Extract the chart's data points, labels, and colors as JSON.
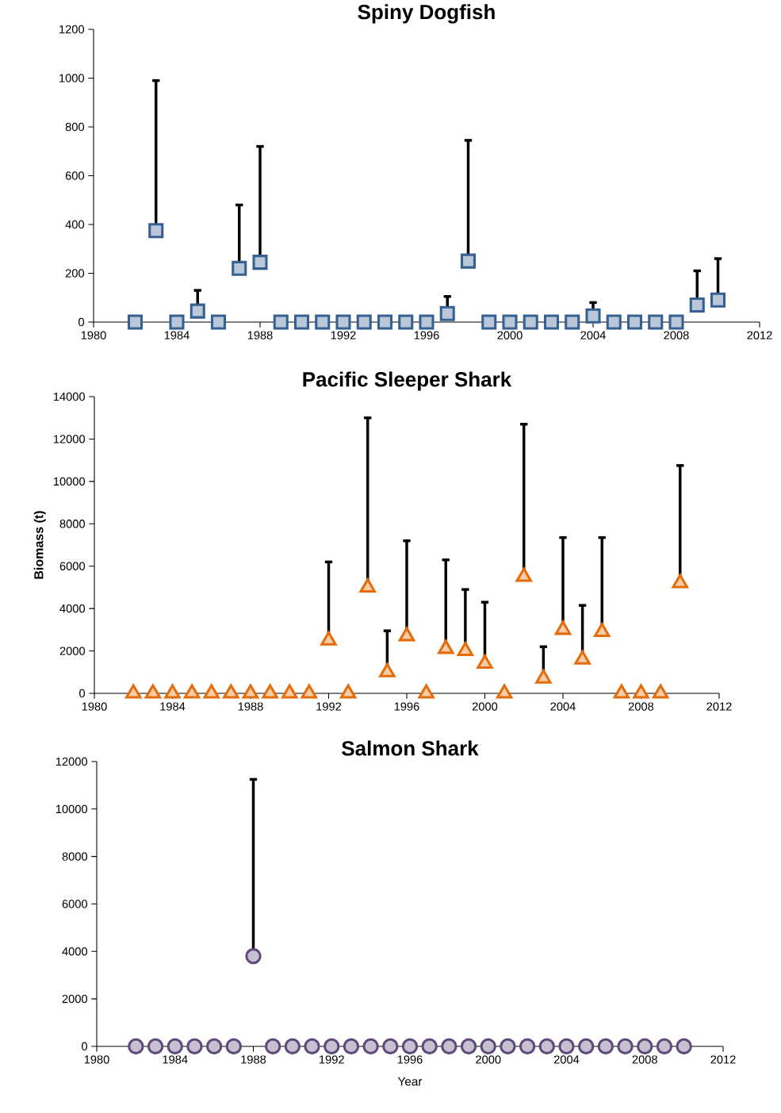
{
  "chart_data": [
    {
      "type": "scatter",
      "title": "Spiny Dogfish",
      "color": "#376092",
      "marker": "square",
      "x": [
        1982,
        1983,
        1984,
        1985,
        1986,
        1987,
        1988,
        1989,
        1990,
        1991,
        1992,
        1993,
        1994,
        1995,
        1996,
        1997,
        1998,
        1999,
        2000,
        2001,
        2002,
        2003,
        2004,
        2005,
        2006,
        2007,
        2008,
        2009,
        2010
      ],
      "values": [
        0,
        375,
        0,
        45,
        0,
        220,
        245,
        0,
        0,
        0,
        0,
        0,
        0,
        0,
        0,
        35,
        250,
        0,
        0,
        0,
        0,
        0,
        25,
        0,
        0,
        0,
        0,
        70,
        90
      ],
      "errors": [
        null,
        [
          375,
          990
        ],
        null,
        [
          45,
          130
        ],
        null,
        [
          220,
          480
        ],
        [
          245,
          720
        ],
        null,
        null,
        null,
        null,
        null,
        null,
        null,
        null,
        [
          35,
          105
        ],
        [
          250,
          745
        ],
        null,
        null,
        null,
        null,
        null,
        [
          25,
          80
        ],
        null,
        null,
        null,
        null,
        [
          70,
          210
        ],
        [
          90,
          260
        ]
      ],
      "xlim": [
        1980,
        2012
      ],
      "xticks": [
        1980,
        1984,
        1988,
        1992,
        1996,
        2000,
        2004,
        2008,
        2012
      ],
      "ylim": [
        0,
        1200
      ],
      "yticks": [
        0,
        200,
        400,
        600,
        800,
        1000,
        1200
      ]
    },
    {
      "type": "scatter",
      "title": "Pacific Sleeper Shark",
      "ylabel": "Biomass (t)",
      "color": "#e46c0a",
      "marker": "triangle",
      "x": [
        1982,
        1983,
        1984,
        1985,
        1986,
        1987,
        1988,
        1989,
        1990,
        1991,
        1992,
        1993,
        1994,
        1995,
        1996,
        1997,
        1998,
        1999,
        2000,
        2001,
        2002,
        2003,
        2004,
        2005,
        2006,
        2007,
        2008,
        2009,
        2010
      ],
      "values": [
        0,
        0,
        0,
        0,
        0,
        0,
        0,
        0,
        0,
        0,
        2500,
        0,
        5000,
        1000,
        2700,
        0,
        2100,
        2000,
        1400,
        0,
        5500,
        700,
        3000,
        1600,
        2900,
        0,
        0,
        0,
        5200
      ],
      "errors": [
        null,
        null,
        null,
        null,
        null,
        null,
        null,
        null,
        null,
        null,
        [
          2500,
          6200
        ],
        null,
        [
          5000,
          13000
        ],
        [
          1000,
          2950
        ],
        [
          2700,
          7200
        ],
        null,
        [
          2100,
          6300
        ],
        [
          2000,
          4900
        ],
        [
          1400,
          4300
        ],
        null,
        [
          5500,
          12700
        ],
        [
          700,
          2200
        ],
        [
          3000,
          7350
        ],
        [
          1600,
          4150
        ],
        [
          2900,
          7350
        ],
        null,
        null,
        null,
        [
          5200,
          10750
        ]
      ],
      "xlim": [
        1980,
        2012
      ],
      "xticks": [
        1980,
        1984,
        1988,
        1992,
        1996,
        2000,
        2004,
        2008,
        2012
      ],
      "ylim": [
        0,
        14000
      ],
      "yticks": [
        0,
        2000,
        4000,
        6000,
        8000,
        10000,
        12000,
        14000
      ]
    },
    {
      "type": "scatter",
      "title": "Salmon Shark",
      "xlabel": "Year",
      "color": "#604a7b",
      "marker": "circle",
      "x": [
        1982,
        1983,
        1984,
        1985,
        1986,
        1987,
        1988,
        1989,
        1990,
        1991,
        1992,
        1993,
        1994,
        1995,
        1996,
        1997,
        1998,
        1999,
        2000,
        2001,
        2002,
        2003,
        2004,
        2005,
        2006,
        2007,
        2008,
        2009,
        2010
      ],
      "values": [
        0,
        0,
        0,
        0,
        0,
        0,
        3800,
        0,
        0,
        0,
        0,
        0,
        0,
        0,
        0,
        0,
        0,
        0,
        0,
        0,
        0,
        0,
        0,
        0,
        0,
        0,
        0,
        0,
        0
      ],
      "errors": [
        null,
        null,
        null,
        null,
        null,
        null,
        [
          3800,
          11250
        ],
        null,
        null,
        null,
        null,
        null,
        null,
        null,
        null,
        null,
        null,
        null,
        null,
        null,
        null,
        null,
        null,
        null,
        null,
        null,
        null,
        null,
        null
      ],
      "xlim": [
        1980,
        2012
      ],
      "xticks": [
        1980,
        1984,
        1988,
        1992,
        1996,
        2000,
        2004,
        2008,
        2012
      ],
      "ylim": [
        0,
        12000
      ],
      "yticks": [
        0,
        2000,
        4000,
        6000,
        8000,
        10000,
        12000
      ]
    }
  ]
}
